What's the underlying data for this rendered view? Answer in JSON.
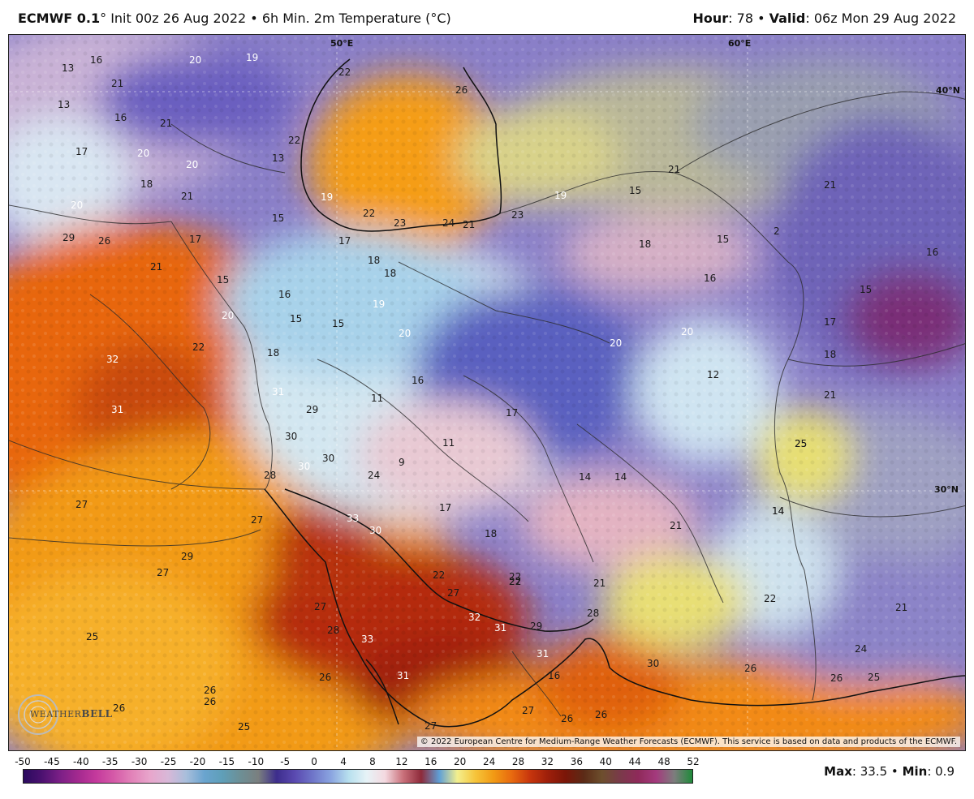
{
  "header": {
    "model": "ECMWF 0.1",
    "degree": "°",
    "init": "Init 00z 26 Aug 2022",
    "product": "6h Min. 2m Temperature (°C)",
    "separator": "•",
    "hour_label": "Hour",
    "hour_value": ": 78",
    "valid_label": "Valid",
    "valid_value": ": 06z Mon 29 Aug 2022"
  },
  "attribution": "© 2022 European Centre for Medium-Range Weather Forecasts (ECMWF). This service is based on data and products of the ECMWF.",
  "logo": {
    "part1": "WEATHER",
    "part2": "BELL"
  },
  "coords": {
    "lon50": "50°E",
    "lon60": "60°E",
    "lat40": "40°N",
    "lat30": "30°N"
  },
  "colorbar": {
    "labels": [
      "-50",
      "-45",
      "-40",
      "-35",
      "-30",
      "-25",
      "-20",
      "-15",
      "-10",
      "-5",
      "0",
      "4",
      "8",
      "12",
      "16",
      "20",
      "24",
      "28",
      "32",
      "36",
      "40",
      "44",
      "48",
      "52"
    ],
    "colors": [
      "#2a0a5e",
      "#4b1170",
      "#7a1f86",
      "#a3298f",
      "#c4399c",
      "#d55aa8",
      "#e283b9",
      "#e8a6cc",
      "#d8b8d8",
      "#a8bedb",
      "#6aa4cf",
      "#5f9fb8",
      "#6d8f95",
      "#7a7f7f",
      "#3d2d8c",
      "#5a49b0",
      "#6f76c9",
      "#8aa4e0",
      "#b8e0ee",
      "#e7f3f7",
      "#f4d9e0",
      "#c9707a",
      "#8e2a3a",
      "#5f9fd6",
      "#f3ef8e",
      "#f6c43a",
      "#f29a14",
      "#e86a0f",
      "#c8360d",
      "#9e1f0a",
      "#7a1608",
      "#5b2b17",
      "#6d4f2d",
      "#7a3a4a",
      "#8f2a5a",
      "#a43a7d",
      "#7d7d7d",
      "#1f8a3a"
    ]
  },
  "stats": {
    "max_label": "Max",
    "max_value": ": 33.5",
    "min_label": "Min",
    "min_value": ": 0.9"
  },
  "map_values": [
    {
      "v": "13",
      "w": false
    },
    {
      "v": "16",
      "w": false
    },
    {
      "v": "20",
      "w": true
    },
    {
      "v": "19",
      "w": true
    },
    {
      "v": "22",
      "w": false
    },
    {
      "v": "21",
      "w": false
    },
    {
      "v": "13",
      "w": false
    },
    {
      "v": "16",
      "w": false
    },
    {
      "v": "21",
      "w": false
    },
    {
      "v": "17",
      "w": false
    },
    {
      "v": "20",
      "w": true
    },
    {
      "v": "20",
      "w": true
    },
    {
      "v": "18",
      "w": false
    },
    {
      "v": "21",
      "w": false
    },
    {
      "v": "13",
      "w": false
    },
    {
      "v": "22",
      "w": false
    },
    {
      "v": "26",
      "w": false
    },
    {
      "v": "20",
      "w": true
    },
    {
      "v": "29",
      "w": false
    },
    {
      "v": "26",
      "w": false
    },
    {
      "v": "21",
      "w": false
    },
    {
      "v": "17",
      "w": false
    },
    {
      "v": "15",
      "w": false
    },
    {
      "v": "17",
      "w": false
    },
    {
      "v": "18",
      "w": false
    },
    {
      "v": "18",
      "w": false
    },
    {
      "v": "19",
      "w": true
    },
    {
      "v": "22",
      "w": false
    },
    {
      "v": "23",
      "w": false
    },
    {
      "v": "24",
      "w": false
    },
    {
      "v": "21",
      "w": false
    },
    {
      "v": "23",
      "w": false
    },
    {
      "v": "19",
      "w": true
    },
    {
      "v": "15",
      "w": false
    },
    {
      "v": "18",
      "w": false
    },
    {
      "v": "21",
      "w": false
    },
    {
      "v": "15",
      "w": false
    },
    {
      "v": "16",
      "w": false
    },
    {
      "v": "19",
      "w": true
    },
    {
      "v": "15",
      "w": false
    },
    {
      "v": "15",
      "w": false
    },
    {
      "v": "20",
      "w": true
    },
    {
      "v": "15",
      "w": false
    },
    {
      "v": "16",
      "w": false
    },
    {
      "v": "20",
      "w": true
    },
    {
      "v": "20",
      "w": true
    },
    {
      "v": "18",
      "w": false
    },
    {
      "v": "22",
      "w": false
    },
    {
      "v": "32",
      "w": true
    },
    {
      "v": "31",
      "w": true
    },
    {
      "v": "11",
      "w": false
    },
    {
      "v": "16",
      "w": false
    },
    {
      "v": "20",
      "w": true
    },
    {
      "v": "12",
      "w": false
    },
    {
      "v": "31",
      "w": true
    },
    {
      "v": "29",
      "w": false
    },
    {
      "v": "30",
      "w": false
    },
    {
      "v": "30",
      "w": false
    },
    {
      "v": "17",
      "w": false
    },
    {
      "v": "11",
      "w": false
    },
    {
      "v": "9",
      "w": false
    },
    {
      "v": "24",
      "w": false
    },
    {
      "v": "28",
      "w": false
    },
    {
      "v": "30",
      "w": true
    },
    {
      "v": "14",
      "w": false
    },
    {
      "v": "14",
      "w": false
    },
    {
      "v": "27",
      "w": false
    },
    {
      "v": "27",
      "w": false
    },
    {
      "v": "33",
      "w": true
    },
    {
      "v": "30",
      "w": true
    },
    {
      "v": "17",
      "w": false
    },
    {
      "v": "18",
      "w": false
    },
    {
      "v": "21",
      "w": false
    },
    {
      "v": "14",
      "w": false
    },
    {
      "v": "29",
      "w": false
    },
    {
      "v": "27",
      "w": false
    },
    {
      "v": "27",
      "w": false
    },
    {
      "v": "28",
      "w": false
    },
    {
      "v": "22",
      "w": false
    },
    {
      "v": "27",
      "w": false
    },
    {
      "v": "32",
      "w": true
    },
    {
      "v": "31",
      "w": true
    },
    {
      "v": "29",
      "w": false
    },
    {
      "v": "28",
      "w": false
    },
    {
      "v": "22",
      "w": false
    },
    {
      "v": "21",
      "w": false
    },
    {
      "v": "25",
      "w": false
    },
    {
      "v": "27",
      "w": false
    },
    {
      "v": "33",
      "w": true
    },
    {
      "v": "31",
      "w": true
    },
    {
      "v": "31",
      "w": true
    },
    {
      "v": "30",
      "w": false
    },
    {
      "v": "24",
      "w": false
    },
    {
      "v": "26",
      "w": false
    },
    {
      "v": "26",
      "w": false
    },
    {
      "v": "25",
      "w": false
    },
    {
      "v": "25",
      "w": false
    },
    {
      "v": "26",
      "w": false
    },
    {
      "v": "26",
      "w": false
    },
    {
      "v": "27",
      "w": false
    },
    {
      "v": "26",
      "w": false
    },
    {
      "v": "26",
      "w": false
    },
    {
      "v": "27",
      "w": false
    },
    {
      "v": "26",
      "w": false
    },
    {
      "v": "25",
      "w": false
    },
    {
      "v": "21",
      "w": false
    },
    {
      "v": "22",
      "w": false
    },
    {
      "v": "22",
      "w": false
    },
    {
      "v": "22",
      "w": false
    },
    {
      "v": "21",
      "w": false
    },
    {
      "v": "16",
      "w": false
    },
    {
      "v": "15",
      "w": false
    },
    {
      "v": "17",
      "w": false
    },
    {
      "v": "18",
      "w": false
    },
    {
      "v": "21",
      "w": false
    },
    {
      "v": "25",
      "w": false
    },
    {
      "v": "14",
      "w": false
    },
    {
      "v": "16",
      "w": false
    },
    {
      "v": "2",
      "w": false
    },
    {
      "v": "26",
      "w": false
    }
  ]
}
